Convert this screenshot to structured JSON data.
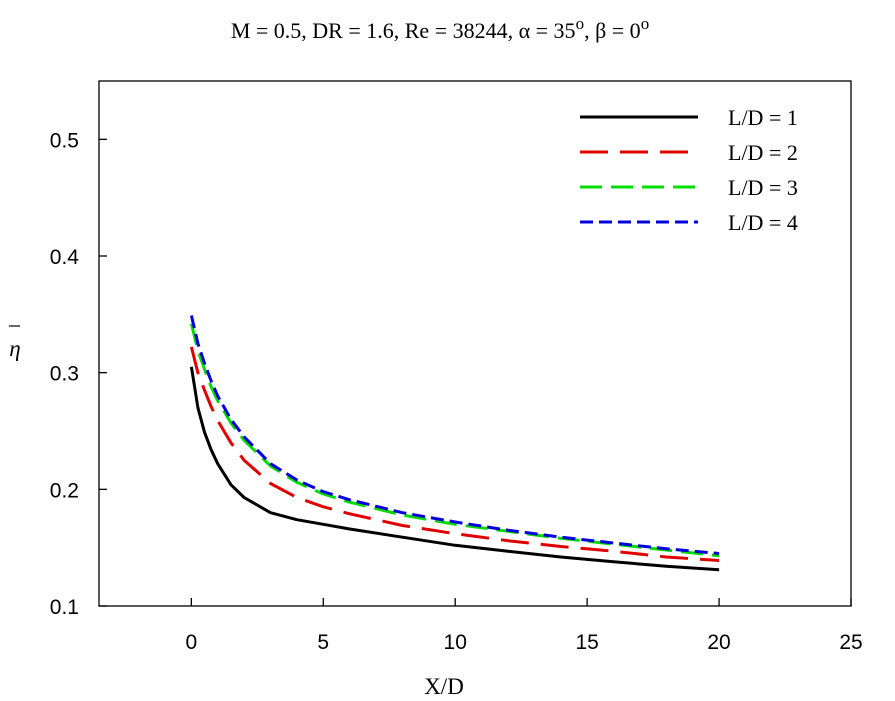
{
  "chart_data": {
    "type": "line",
    "title": {
      "prefix": "M = 0.5, DR = 1.6, Re = 38244, ",
      "alpha_symbol": "α",
      "alpha_text": " = 35",
      "alpha_sup": "o",
      "sep": ", ",
      "beta_symbol": "β",
      "beta_text": " = 0",
      "beta_sup": "o"
    },
    "xlabel": "X/D",
    "ylabel": "η",
    "xlim": [
      -3.5,
      25
    ],
    "ylim": [
      0.1,
      0.55
    ],
    "xticks": [
      0,
      5,
      10,
      15,
      20,
      25
    ],
    "yticks": [
      0.1,
      0.2,
      0.3,
      0.4,
      0.5
    ],
    "xtick_labels": [
      "0",
      "5",
      "10",
      "15",
      "20",
      "25"
    ],
    "ytick_labels": [
      "0.1",
      "0.2",
      "0.3",
      "0.4",
      "0.5"
    ],
    "grid": false,
    "legend_position": "top-right",
    "series": [
      {
        "name": "L/D = 1",
        "color": "#000000",
        "dash": "solid",
        "x": [
          0,
          0.25,
          0.5,
          0.75,
          1,
          1.5,
          2,
          3,
          4,
          5,
          6,
          8,
          10,
          12,
          14,
          16,
          18,
          20
        ],
        "y": [
          0.305,
          0.27,
          0.249,
          0.234,
          0.222,
          0.204,
          0.193,
          0.18,
          0.174,
          0.17,
          0.166,
          0.159,
          0.152,
          0.147,
          0.142,
          0.138,
          0.134,
          0.131
        ]
      },
      {
        "name": "L/D = 2",
        "color": "#e00000",
        "dash": "long-dash",
        "x": [
          0,
          0.25,
          0.5,
          0.75,
          1,
          1.5,
          2,
          3,
          4,
          5,
          6,
          8,
          10,
          12,
          14,
          16,
          18,
          20
        ],
        "y": [
          0.322,
          0.3,
          0.285,
          0.271,
          0.259,
          0.24,
          0.225,
          0.205,
          0.193,
          0.185,
          0.179,
          0.169,
          0.162,
          0.156,
          0.151,
          0.147,
          0.142,
          0.139
        ]
      },
      {
        "name": "L/D = 3",
        "color": "#00dd00",
        "dash": "dash",
        "x": [
          0,
          0.25,
          0.5,
          0.75,
          1,
          1.5,
          2,
          3,
          4,
          5,
          6,
          8,
          10,
          12,
          14,
          16,
          18,
          20
        ],
        "y": [
          0.342,
          0.319,
          0.303,
          0.288,
          0.276,
          0.257,
          0.242,
          0.22,
          0.206,
          0.196,
          0.189,
          0.178,
          0.17,
          0.164,
          0.158,
          0.153,
          0.148,
          0.143
        ]
      },
      {
        "name": "L/D = 4",
        "color": "#0000dd",
        "dash": "short-dash",
        "x": [
          0,
          0.25,
          0.5,
          0.75,
          1,
          1.5,
          2,
          3,
          4,
          5,
          6,
          8,
          10,
          12,
          14,
          16,
          18,
          20
        ],
        "y": [
          0.349,
          0.325,
          0.308,
          0.293,
          0.28,
          0.26,
          0.245,
          0.222,
          0.208,
          0.198,
          0.191,
          0.18,
          0.172,
          0.165,
          0.159,
          0.154,
          0.149,
          0.145
        ]
      }
    ]
  }
}
